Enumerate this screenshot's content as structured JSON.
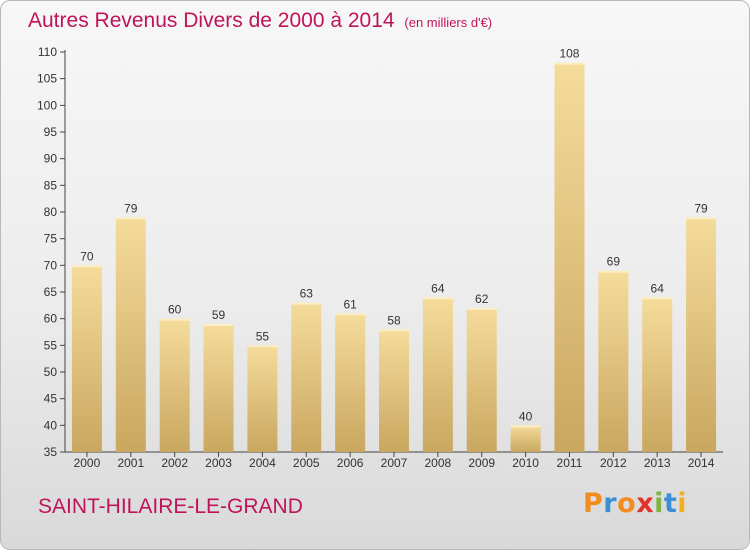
{
  "header": {
    "title": "Autres Revenus Divers de 2000 à 2014",
    "unit": "(en milliers d'€)"
  },
  "footer": {
    "town": "SAINT-HILAIRE-LE-GRAND",
    "logo": "Proxiti"
  },
  "colors": {
    "title": "#c0145a",
    "bar_light": "#f5dc9b",
    "bar_dark": "#c9a75f",
    "axis": "#444444"
  },
  "chart_data": {
    "type": "bar",
    "title": "Autres Revenus Divers de 2000 à 2014",
    "subtitle": "(en milliers d'€)",
    "xlabel": "",
    "ylabel": "",
    "categories": [
      "2000",
      "2001",
      "2002",
      "2003",
      "2004",
      "2005",
      "2006",
      "2007",
      "2008",
      "2009",
      "2010",
      "2011",
      "2012",
      "2013",
      "2014"
    ],
    "values": [
      70,
      79,
      60,
      59,
      55,
      63,
      61,
      58,
      64,
      62,
      40,
      108,
      69,
      64,
      79
    ],
    "ylim": [
      35,
      110
    ],
    "yticks": [
      35,
      40,
      45,
      50,
      55,
      60,
      65,
      70,
      75,
      80,
      85,
      90,
      95,
      100,
      105,
      110
    ],
    "grid": false,
    "data_labels": true
  }
}
